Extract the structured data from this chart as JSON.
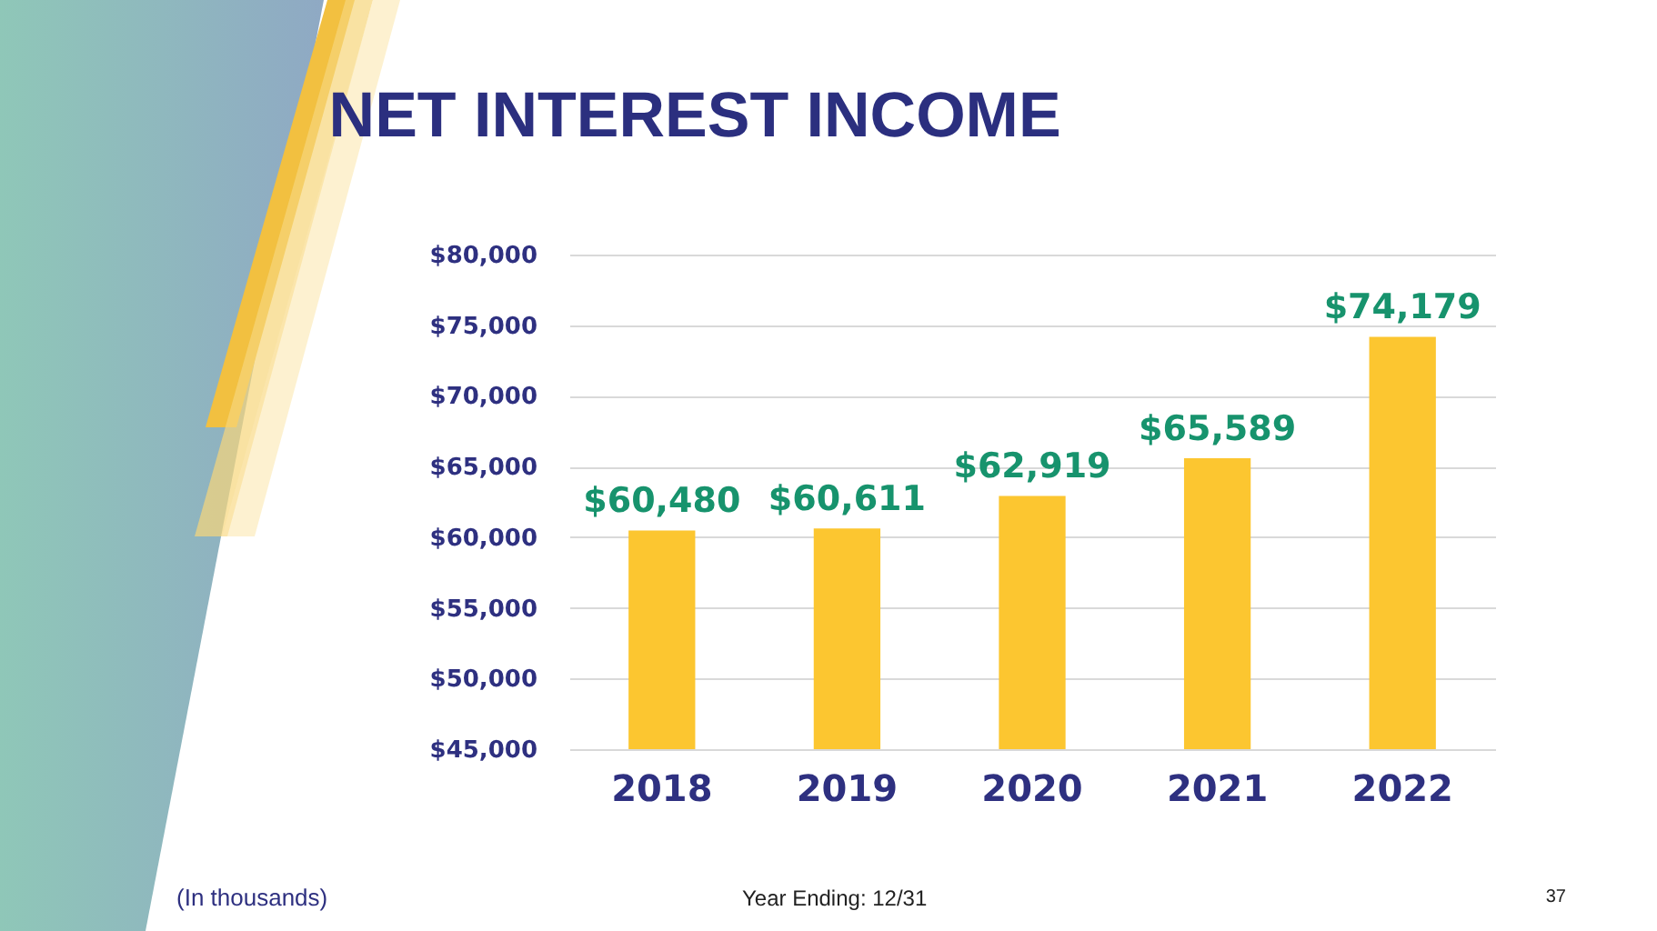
{
  "chart_data": {
    "type": "bar",
    "title": "NET INTEREST INCOME",
    "categories": [
      "2018",
      "2019",
      "2020",
      "2021",
      "2022"
    ],
    "values": [
      60480,
      60611,
      62919,
      65589,
      74179
    ],
    "value_labels": [
      "$60,480",
      "$60,611",
      "$62,919",
      "$65,589",
      "$74,179"
    ],
    "color": "#fcc630",
    "ylim": [
      45000,
      80000
    ],
    "yticks": [
      {
        "value": 45000,
        "label": "$45,000"
      },
      {
        "value": 50000,
        "label": "$50,000"
      },
      {
        "value": 55000,
        "label": "$55,000"
      },
      {
        "value": 60000,
        "label": "$60,000"
      },
      {
        "value": 65000,
        "label": "$65,000"
      },
      {
        "value": 70000,
        "label": "$70,000"
      },
      {
        "value": 75000,
        "label": "$75,000"
      },
      {
        "value": 80000,
        "label": "$80,000"
      }
    ],
    "grid": "y",
    "annotations": [
      "(In thousands)",
      "Year Ending: 12/31",
      "37"
    ]
  }
}
